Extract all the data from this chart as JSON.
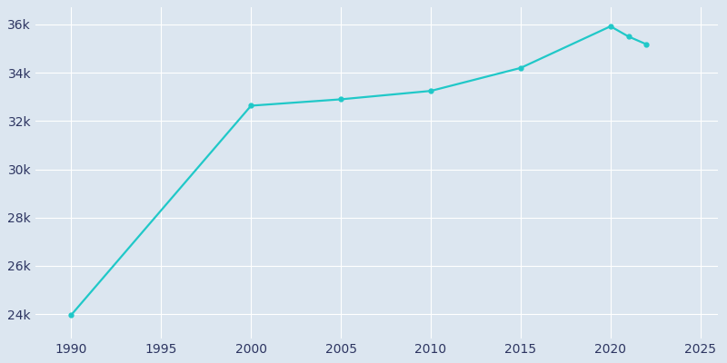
{
  "years": [
    1990,
    2000,
    2005,
    2010,
    2015,
    2020,
    2021,
    2022
  ],
  "population": [
    23974,
    32636,
    32900,
    33248,
    34200,
    35923,
    35500,
    35179
  ],
  "line_color": "#20C8C8",
  "marker_color": "#20C8C8",
  "bg_color": "#dce6f0",
  "grid_color": "#ffffff",
  "text_color": "#2d3561",
  "xlim": [
    1988,
    2026
  ],
  "ylim": [
    23000,
    36700
  ],
  "xticks": [
    1990,
    1995,
    2000,
    2005,
    2010,
    2015,
    2020,
    2025
  ],
  "yticks": [
    24000,
    26000,
    28000,
    30000,
    32000,
    34000,
    36000
  ],
  "figwidth": 8.0,
  "figheight": 4.0,
  "dpi": 100
}
